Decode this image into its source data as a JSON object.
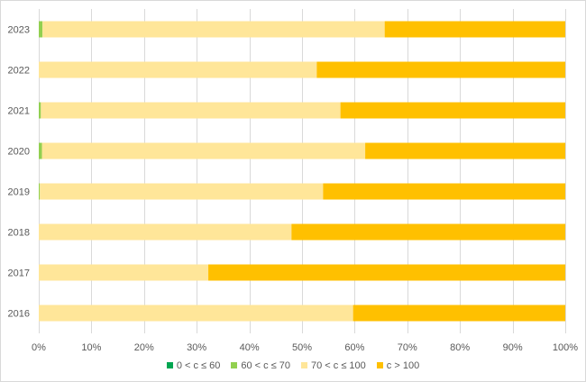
{
  "chart_data": {
    "type": "bar",
    "orientation": "horizontal",
    "stacked": "percent",
    "categories": [
      "2023",
      "2022",
      "2021",
      "2020",
      "2019",
      "2018",
      "2017",
      "2016"
    ],
    "series": [
      {
        "name": "0 < c ≤ 60",
        "color": "#00a651",
        "values": [
          0.0,
          0.0,
          0.0,
          0.0,
          0.0,
          0.0,
          0.0,
          0.0
        ]
      },
      {
        "name": "60 < c ≤ 70",
        "color": "#92d050",
        "values": [
          0.7,
          0.0,
          0.4,
          0.6,
          0.2,
          0.0,
          0.0,
          0.0
        ]
      },
      {
        "name": "70 < c ≤ 100",
        "color": "#ffe699",
        "values": [
          65.0,
          52.8,
          56.9,
          61.4,
          53.8,
          48.0,
          32.2,
          59.7
        ]
      },
      {
        "name": "c > 100",
        "color": "#ffc000",
        "values": [
          34.3,
          47.2,
          42.7,
          38.0,
          46.0,
          52.0,
          67.8,
          40.3
        ]
      }
    ],
    "xlim": [
      0,
      100
    ],
    "xticks": [
      "0%",
      "10%",
      "20%",
      "30%",
      "40%",
      "50%",
      "60%",
      "70%",
      "80%",
      "90%",
      "100%"
    ],
    "grid": "vertical",
    "legend": "bottom",
    "title": "",
    "xlabel": "",
    "ylabel": ""
  }
}
